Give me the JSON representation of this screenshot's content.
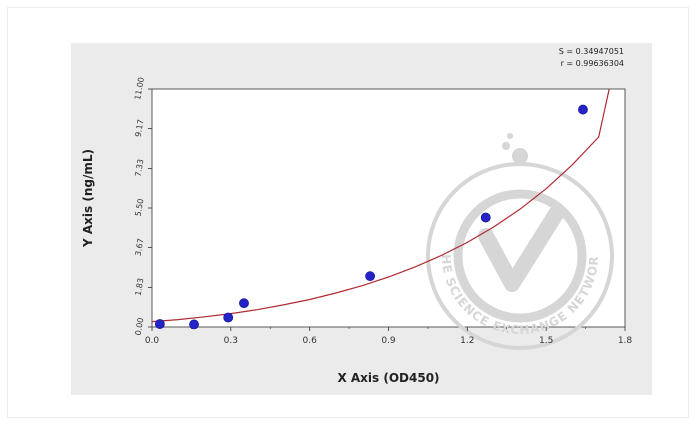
{
  "chart_data": {
    "type": "scatter",
    "xlabel": "X Axis (OD450)",
    "ylabel": "Y Axis (ng/mL)",
    "xlim": [
      0.0,
      1.8
    ],
    "ylim": [
      0.0,
      11.0
    ],
    "x_ticks": [
      "0.0",
      "0.3",
      "0.6",
      "0.9",
      "1.2",
      "1.5",
      "1.8"
    ],
    "y_ticks": [
      "0.00",
      "1.83",
      "3.67",
      "5.50",
      "7.33",
      "9.17",
      "11.00"
    ],
    "points": [
      {
        "x": 0.03,
        "y": 0.0
      },
      {
        "x": 0.16,
        "y": 0.12
      },
      {
        "x": 0.29,
        "y": 0.44
      },
      {
        "x": 0.35,
        "y": 1.1
      },
      {
        "x": 0.83,
        "y": 2.35
      },
      {
        "x": 1.27,
        "y": 5.06
      },
      {
        "x": 1.64,
        "y": 10.05
      }
    ],
    "fit_curve": {
      "x": [
        0.0,
        0.1,
        0.2,
        0.3,
        0.4,
        0.5,
        0.6,
        0.7,
        0.8,
        0.9,
        1.0,
        1.1,
        1.2,
        1.3,
        1.4,
        1.5,
        1.6,
        1.7,
        1.74
      ],
      "y": [
        0.25,
        0.34,
        0.47,
        0.62,
        0.8,
        1.02,
        1.27,
        1.57,
        1.91,
        2.31,
        2.77,
        3.3,
        3.91,
        4.62,
        5.44,
        6.39,
        7.5,
        8.78,
        11.0
      ]
    },
    "stats": {
      "s_line": "S = 0.34947051",
      "r_line": "r = 0.99636304"
    },
    "watermark_text": "THE SCIENCE EXCHANGE NETWORK",
    "colors": {
      "panel_bg": "#ebebeb",
      "plot_bg": "#ffffff",
      "point": "#2323c8",
      "curve": "#b02a30",
      "watermark": "#d6d6d6"
    },
    "grid": false
  }
}
